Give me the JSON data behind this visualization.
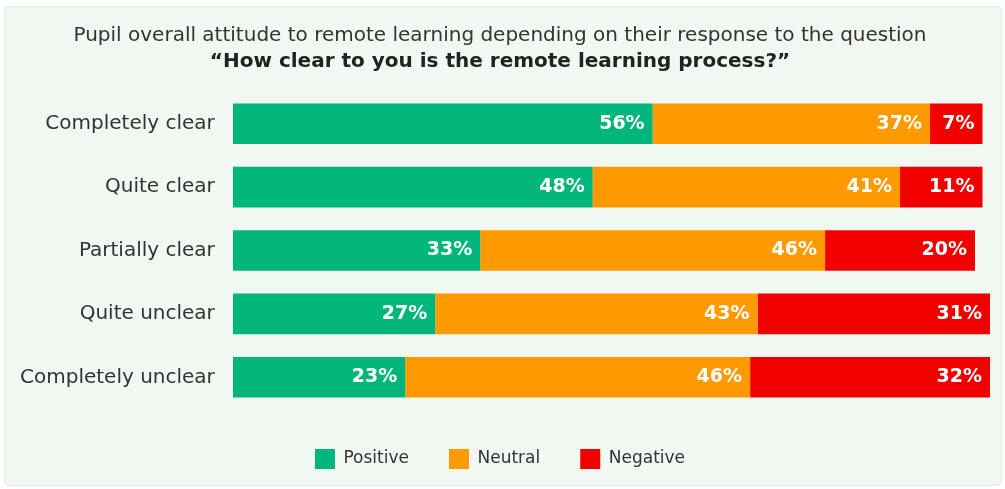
{
  "chart_data": {
    "type": "bar",
    "orientation": "horizontal",
    "stacked": true,
    "title": "Pupil overall attitude to remote learning depending on their response to the question",
    "subtitle": "“How clear to you is the remote learning process?”",
    "categories": [
      "Completely clear",
      "Quite clear",
      "Partially clear",
      "Quite unclear",
      "Completely unclear"
    ],
    "series": [
      {
        "name": "Positive",
        "color": "#00b67a",
        "values": [
          56,
          48,
          33,
          27,
          23
        ],
        "value_labels": [
          "56%",
          "48%",
          "33%",
          "27%",
          "23%"
        ]
      },
      {
        "name": "Neutral",
        "color": "#ff9900",
        "values": [
          37,
          41,
          46,
          43,
          46
        ],
        "value_labels": [
          "37%",
          "41%",
          "46%",
          "43%",
          "46%"
        ]
      },
      {
        "name": "Negative",
        "color": "#f20000",
        "values": [
          7,
          11,
          20,
          31,
          32
        ],
        "value_labels": [
          "7%",
          "11%",
          "20%",
          "31%",
          "32%"
        ]
      }
    ],
    "legend": "bottom"
  }
}
